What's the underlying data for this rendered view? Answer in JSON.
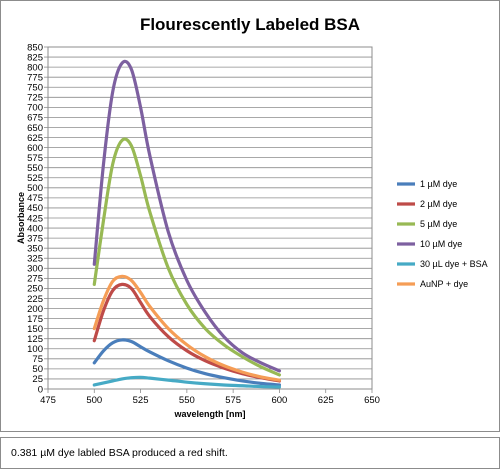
{
  "chart_data": {
    "type": "line",
    "title": "Flourescently Labeled BSA",
    "xlabel": "wavelength [nm]",
    "ylabel": "Absorbance",
    "xlim": [
      475,
      650
    ],
    "ylim": [
      0,
      850
    ],
    "xticks": [
      "475",
      "500",
      "525",
      "550",
      "575",
      "600",
      "625",
      "650"
    ],
    "yticks": [
      "0",
      "25",
      "50",
      "75",
      "100",
      "125",
      "150",
      "175",
      "200",
      "225",
      "250",
      "275",
      "300",
      "325",
      "350",
      "375",
      "400",
      "425",
      "450",
      "475",
      "500",
      "525",
      "550",
      "575",
      "600",
      "625",
      "650",
      "675",
      "700",
      "725",
      "750",
      "775",
      "800",
      "825",
      "850"
    ],
    "grid": "horizontal",
    "legend_position": "right",
    "series": [
      {
        "name": "1 µM dye",
        "color": "#4a7ebb",
        "x": [
          500,
          505,
          510,
          515,
          520,
          525,
          530,
          540,
          550,
          560,
          570,
          580,
          590,
          600
        ],
        "y": [
          65,
          95,
          115,
          122,
          118,
          105,
          92,
          70,
          52,
          38,
          28,
          20,
          14,
          10
        ]
      },
      {
        "name": "2 µM dye",
        "color": "#be4b48",
        "x": [
          500,
          505,
          510,
          515,
          520,
          525,
          530,
          540,
          550,
          560,
          570,
          580,
          590,
          600
        ],
        "y": [
          120,
          195,
          245,
          260,
          250,
          215,
          180,
          130,
          95,
          70,
          52,
          38,
          28,
          20
        ]
      },
      {
        "name": "5 µM dye",
        "color": "#98b954",
        "x": [
          500,
          505,
          510,
          515,
          520,
          525,
          530,
          540,
          550,
          560,
          570,
          580,
          590,
          600
        ],
        "y": [
          260,
          420,
          560,
          618,
          605,
          530,
          440,
          300,
          210,
          150,
          110,
          80,
          55,
          35
        ]
      },
      {
        "name": "10 µM dye",
        "color": "#7d60a0",
        "x": [
          500,
          505,
          510,
          515,
          520,
          525,
          530,
          540,
          550,
          560,
          570,
          580,
          590,
          600
        ],
        "y": [
          310,
          560,
          740,
          810,
          795,
          700,
          580,
          390,
          270,
          190,
          130,
          90,
          65,
          45
        ]
      },
      {
        "name": "30 µL dye + BSA",
        "color": "#46aac5",
        "x": [
          500,
          505,
          510,
          515,
          520,
          525,
          530,
          540,
          550,
          560,
          570,
          580,
          590,
          600
        ],
        "y": [
          10,
          15,
          20,
          25,
          28,
          29,
          27,
          22,
          17,
          13,
          10,
          8,
          6,
          5
        ]
      },
      {
        "name": "AuNP + dye",
        "color": "#f59d56",
        "x": [
          500,
          505,
          510,
          515,
          520,
          525,
          530,
          540,
          550,
          560,
          570,
          580,
          590,
          600
        ],
        "y": [
          150,
          220,
          268,
          280,
          270,
          240,
          205,
          150,
          110,
          80,
          58,
          42,
          30,
          22
        ]
      }
    ]
  },
  "caption": "0.381 µM dye labled BSA produced a red shift."
}
